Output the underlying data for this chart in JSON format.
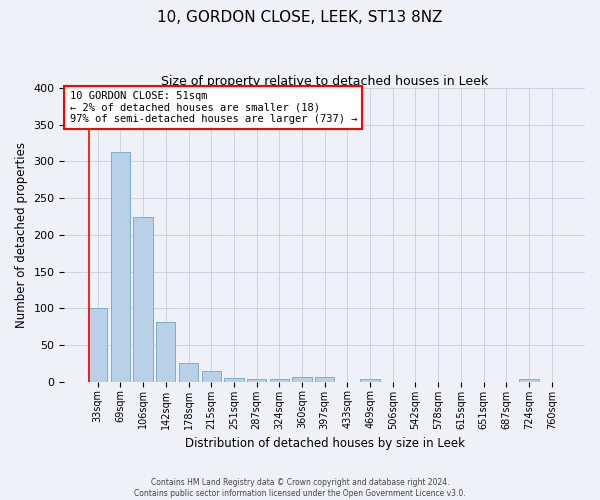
{
  "title": "10, GORDON CLOSE, LEEK, ST13 8NZ",
  "subtitle": "Size of property relative to detached houses in Leek",
  "xlabel": "Distribution of detached houses by size in Leek",
  "ylabel": "Number of detached properties",
  "bar_color": "#b8d0e8",
  "bar_edge_color": "#7aaed0",
  "background_color": "#eef2f8",
  "grid_color": "#c8cfd8",
  "categories": [
    "33sqm",
    "69sqm",
    "106sqm",
    "142sqm",
    "178sqm",
    "215sqm",
    "251sqm",
    "287sqm",
    "324sqm",
    "360sqm",
    "397sqm",
    "433sqm",
    "469sqm",
    "506sqm",
    "542sqm",
    "578sqm",
    "615sqm",
    "651sqm",
    "687sqm",
    "724sqm",
    "760sqm"
  ],
  "values": [
    100,
    313,
    224,
    81,
    26,
    14,
    5,
    4,
    3,
    6,
    6,
    0,
    4,
    0,
    0,
    0,
    0,
    0,
    0,
    4,
    0
  ],
  "ylim": [
    0,
    400
  ],
  "yticks": [
    0,
    50,
    100,
    150,
    200,
    250,
    300,
    350,
    400
  ],
  "annotation_line1": "10 GORDON CLOSE: 51sqm",
  "annotation_line2": "← 2% of detached houses are smaller (18)",
  "annotation_line3": "97% of semi-detached houses are larger (737) →",
  "red_line_x": -0.4,
  "footer_line1": "Contains HM Land Registry data © Crown copyright and database right 2024.",
  "footer_line2": "Contains public sector information licensed under the Open Government Licence v3.0."
}
